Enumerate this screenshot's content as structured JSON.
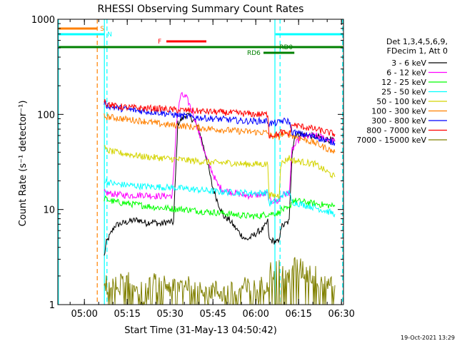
{
  "chart_data": {
    "type": "line",
    "title": "RHESSI Observing Summary Count Rates",
    "xlabel": "Start Time (31-May-13 04:50:42)",
    "ylabel": "Count Rate (s⁻¹ detector⁻¹)",
    "x_unit": "minutes since 04:50:42",
    "xlim": [
      0,
      100
    ],
    "ylim": [
      1,
      1000
    ],
    "yscale": "log",
    "x_ticks": [
      {
        "label": "05:00",
        "x": 9.3
      },
      {
        "label": "05:15",
        "x": 24.3
      },
      {
        "label": "05:30",
        "x": 39.3
      },
      {
        "label": "05:45",
        "x": 54.3
      },
      {
        "label": "06:00",
        "x": 69.3
      },
      {
        "label": "06:15",
        "x": 84.3
      },
      {
        "label": "06:30",
        "x": 99.3
      }
    ],
    "y_ticks": [
      {
        "label": "1",
        "y": 1
      },
      {
        "label": "10",
        "y": 10
      },
      {
        "label": "100",
        "y": 100
      },
      {
        "label": "1000",
        "y": 1000
      }
    ],
    "legend": {
      "placement": "right",
      "header": [
        "Det 1,3,4,5,6,9,",
        "FDecim 1, Att 0"
      ]
    },
    "series": [
      {
        "name": "3 - 6 keV",
        "color": "#000000",
        "x": [
          16.2,
          17.0,
          20.0,
          25.0,
          28.0,
          31.0,
          33.0,
          36.0,
          38.0,
          40.5,
          42.0,
          45.0,
          48.0,
          50.0,
          52.0,
          54.0,
          56.0,
          58.0,
          60.0,
          62.0,
          64.0,
          66.0,
          68.0,
          70.0,
          72.0,
          73.5,
          74.0,
          77.5,
          78.0,
          81.0,
          82.0,
          83.0,
          85.0,
          88.0,
          91.0,
          94.0,
          97.0
        ],
        "y": [
          3.2,
          4.5,
          6.8,
          7.5,
          7.8,
          7.2,
          7.5,
          7.0,
          7.4,
          7.3,
          80,
          100,
          85,
          60,
          35,
          18,
          12,
          8.5,
          7.8,
          6.5,
          5.5,
          4.8,
          5.2,
          5.8,
          6.3,
          7.5,
          4.8,
          4.5,
          6.5,
          7.5,
          40,
          60,
          62,
          60,
          58,
          55,
          52
        ]
      },
      {
        "name": "6 - 12 keV",
        "color": "#ff00ff",
        "x": [
          16.2,
          20.0,
          25.0,
          30.0,
          35.0,
          40.0,
          40.8,
          41.5,
          43.0,
          45.0,
          47.0,
          48.5,
          50.0,
          52.0,
          54.0,
          56.0,
          58.0,
          62.0,
          66.0,
          70.0,
          73.5,
          74.0,
          77.5,
          78.0,
          81.0,
          82.0,
          85.0,
          90.0,
          95.0,
          97.0
        ],
        "y": [
          15,
          14.5,
          14,
          14.3,
          13.8,
          14,
          30,
          80,
          160,
          150,
          110,
          80,
          55,
          35,
          25,
          18,
          16,
          15,
          14,
          14.2,
          14.5,
          12.5,
          12.0,
          14,
          15,
          42,
          58,
          60,
          55,
          52
        ]
      },
      {
        "name": "12 - 25 keV",
        "color": "#00ff00",
        "x": [
          16.2,
          20.0,
          25.0,
          30.0,
          35.0,
          40.0,
          45.0,
          50.0,
          55.0,
          60.0,
          65.0,
          70.0,
          73.5,
          74.0,
          77.5,
          78.0,
          81.0,
          82.0,
          90.0,
          97.0
        ],
        "y": [
          13,
          12,
          11.5,
          11,
          10.5,
          10.2,
          10,
          9.6,
          9.3,
          9.0,
          8.6,
          8.5,
          9.0,
          9.0,
          9.2,
          10.0,
          10.0,
          12.5,
          11.5,
          10.8
        ]
      },
      {
        "name": "25 - 50 keV",
        "color": "#00ffff",
        "x": [
          16.2,
          20.0,
          25.0,
          30.0,
          35.0,
          40.0,
          45.0,
          50.0,
          55.0,
          60.0,
          65.0,
          70.0,
          73.5,
          74.0,
          77.5,
          78.0,
          81.0,
          82.0,
          90.0,
          97.0
        ],
        "y": [
          20,
          18.5,
          18,
          17.5,
          17.3,
          17,
          16.5,
          16,
          15.5,
          15.2,
          15,
          14.8,
          15.2,
          11.5,
          12.5,
          14,
          15,
          12.0,
          10.5,
          9.0
        ]
      },
      {
        "name": "50 - 100 keV",
        "color": "#d4d400",
        "x": [
          16.2,
          17.0,
          20.0,
          25.0,
          30.0,
          35.0,
          40.0,
          45.0,
          50.0,
          55.0,
          60.0,
          65.0,
          70.0,
          73.5,
          74.0,
          77.5,
          78.0,
          81.0,
          82.0,
          90.0,
          97.0
        ],
        "y": [
          45,
          42,
          40,
          38,
          36,
          35,
          34,
          33,
          32,
          31,
          31,
          30,
          30,
          30,
          14,
          14,
          30,
          35,
          33,
          30,
          22
        ]
      },
      {
        "name": "100 - 300 keV",
        "color": "#ff8000",
        "x": [
          16.2,
          20.0,
          25.0,
          30.0,
          35.0,
          40.0,
          45.0,
          50.0,
          55.0,
          60.0,
          65.0,
          70.0,
          73.5,
          74.0,
          77.5,
          78.0,
          81.0,
          82.0,
          90.0,
          97.0
        ],
        "y": [
          95,
          92,
          88,
          85,
          80,
          77,
          75,
          72,
          70,
          68,
          66,
          65,
          64,
          60,
          58,
          62,
          62,
          60,
          50,
          40
        ]
      },
      {
        "name": "300 - 800 keV",
        "color": "#0000ff",
        "x": [
          16.2,
          17.0,
          20.0,
          25.0,
          30.0,
          35.0,
          40.0,
          45.0,
          50.0,
          55.0,
          60.0,
          65.0,
          70.0,
          73.5,
          74.0,
          77.5,
          78.0,
          81.0,
          82.0,
          90.0,
          97.0
        ],
        "y": [
          135,
          125,
          118,
          112,
          108,
          105,
          100,
          95,
          92,
          90,
          88,
          85,
          85,
          85,
          80,
          82,
          85,
          85,
          65,
          58,
          50
        ]
      },
      {
        "name": "800 - 7000 keV",
        "color": "#ff0000",
        "x": [
          16.2,
          17.0,
          20.0,
          25.0,
          30.0,
          35.0,
          40.0,
          45.0,
          50.0,
          55.0,
          60.0,
          65.0,
          70.0,
          73.5,
          74.0,
          77.5,
          78.0,
          81.0,
          82.0,
          90.0,
          97.0
        ],
        "y": [
          145,
          130,
          122,
          118,
          116,
          115,
          112,
          110,
          108,
          106,
          104,
          102,
          100,
          100,
          60,
          62,
          65,
          62,
          78,
          70,
          62
        ]
      },
      {
        "name": "7000 - 15000 keV",
        "color": "#808000",
        "x": [
          16.2,
          20.0,
          25.0,
          30.0,
          35.0,
          40.0,
          45.0,
          50.0,
          55.0,
          60.0,
          65.0,
          70.0,
          73.5,
          74.0,
          77.5,
          78.0,
          81.0,
          82.0,
          90.0,
          97.0
        ],
        "y": [
          1.6,
          1.5,
          1.9,
          1.3,
          1.8,
          1.5,
          1.7,
          1.6,
          1.4,
          1.3,
          1.5,
          1.4,
          1.8,
          2.2,
          2.4,
          2.2,
          2.0,
          2.6,
          2.0,
          1.6
        ]
      }
    ],
    "flag_bars": [
      {
        "label": "S",
        "x": [
          0.3,
          13.8
        ],
        "color": "#ff8000"
      },
      {
        "label": "N",
        "x": [
          0.3,
          16.3
        ],
        "color": "#00ffff"
      },
      {
        "label": "N",
        "x": [
          76.2,
          99.8
        ],
        "color": "#00ffff"
      },
      {
        "label": "F",
        "x": [
          38.0,
          52.0
        ],
        "color": "#ff0000"
      },
      {
        "label": "RD0",
        "x": [
          0.3,
          99.8
        ],
        "color": "#008000"
      },
      {
        "label": "RD6",
        "x": [
          72.0,
          82.8
        ],
        "color": "#008000"
      }
    ],
    "vertical_lines": [
      {
        "x": 0.2,
        "color": "#00ffff",
        "style": "solid"
      },
      {
        "x": 13.8,
        "color": "#ff8000",
        "style": "dashed"
      },
      {
        "x": 16.3,
        "color": "#00ffff",
        "style": "solid"
      },
      {
        "x": 17.2,
        "color": "#00ffff",
        "style": "dashed"
      },
      {
        "x": 76.0,
        "color": "#00ffff",
        "style": "solid"
      },
      {
        "x": 77.8,
        "color": "#00ffff",
        "style": "dashed"
      },
      {
        "x": 99.7,
        "color": "#00ffff",
        "style": "dashed"
      }
    ],
    "timestamp": "19-Oct-2021 13:29"
  }
}
